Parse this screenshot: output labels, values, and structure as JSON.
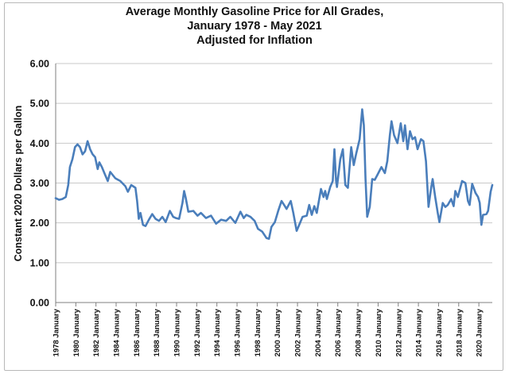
{
  "chart_data": {
    "type": "line",
    "title": "Average Monthly Gasoline Price for All Grades,",
    "subtitle": "January 1978 - May 2021",
    "subtitle2": "Adjusted for Inflation",
    "xlabel": "",
    "ylabel": "Constant 2020 Dollars per Gallon",
    "ylim": [
      0,
      6
    ],
    "y_ticks": [
      "0.00",
      "1.00",
      "2.00",
      "3.00",
      "4.00",
      "5.00",
      "6.00"
    ],
    "x_range": [
      "1978-01",
      "2021-05"
    ],
    "x_ticks": [
      "1978 January",
      "1980 January",
      "1982 January",
      "1984 January",
      "1986 January",
      "1988 January",
      "1990 January",
      "1992 January",
      "1994 January",
      "1996 January",
      "1998 January",
      "2000 January",
      "2002 January",
      "2004 January",
      "2006 January",
      "2008 January",
      "2010 January",
      "2012 January",
      "2014 January",
      "2016 January",
      "2018 January",
      "2020 January"
    ],
    "grid": "horizontal",
    "legend": "none",
    "line_color": "#4a7ebb",
    "series": [
      {
        "points": [
          [
            "1978-01",
            2.62
          ],
          [
            "1978-05",
            2.58
          ],
          [
            "1978-09",
            2.6
          ],
          [
            "1979-01",
            2.65
          ],
          [
            "1979-04",
            2.95
          ],
          [
            "1979-06",
            3.4
          ],
          [
            "1979-09",
            3.6
          ],
          [
            "1979-12",
            3.9
          ],
          [
            "1980-03",
            3.97
          ],
          [
            "1980-06",
            3.9
          ],
          [
            "1980-09",
            3.72
          ],
          [
            "1980-12",
            3.8
          ],
          [
            "1981-03",
            4.05
          ],
          [
            "1981-06",
            3.85
          ],
          [
            "1981-09",
            3.72
          ],
          [
            "1981-12",
            3.65
          ],
          [
            "1982-03",
            3.35
          ],
          [
            "1982-05",
            3.52
          ],
          [
            "1982-08",
            3.4
          ],
          [
            "1982-12",
            3.2
          ],
          [
            "1983-03",
            3.05
          ],
          [
            "1983-06",
            3.28
          ],
          [
            "1983-12",
            3.12
          ],
          [
            "1984-06",
            3.05
          ],
          [
            "1984-12",
            2.92
          ],
          [
            "1985-03",
            2.78
          ],
          [
            "1985-07",
            2.95
          ],
          [
            "1985-12",
            2.88
          ],
          [
            "1986-02",
            2.55
          ],
          [
            "1986-04",
            2.1
          ],
          [
            "1986-06",
            2.25
          ],
          [
            "1986-09",
            1.95
          ],
          [
            "1986-12",
            1.92
          ],
          [
            "1987-04",
            2.08
          ],
          [
            "1987-08",
            2.22
          ],
          [
            "1987-12",
            2.1
          ],
          [
            "1988-04",
            2.05
          ],
          [
            "1988-08",
            2.15
          ],
          [
            "1988-12",
            2.02
          ],
          [
            "1989-05",
            2.3
          ],
          [
            "1989-09",
            2.15
          ],
          [
            "1989-12",
            2.12
          ],
          [
            "1990-04",
            2.1
          ],
          [
            "1990-08",
            2.5
          ],
          [
            "1990-10",
            2.8
          ],
          [
            "1990-12",
            2.62
          ],
          [
            "1991-03",
            2.28
          ],
          [
            "1991-09",
            2.3
          ],
          [
            "1992-02",
            2.18
          ],
          [
            "1992-06",
            2.25
          ],
          [
            "1992-12",
            2.12
          ],
          [
            "1993-06",
            2.18
          ],
          [
            "1993-12",
            1.98
          ],
          [
            "1994-06",
            2.08
          ],
          [
            "1994-12",
            2.05
          ],
          [
            "1995-05",
            2.15
          ],
          [
            "1995-11",
            2.0
          ],
          [
            "1996-05",
            2.28
          ],
          [
            "1996-09",
            2.12
          ],
          [
            "1996-12",
            2.2
          ],
          [
            "1997-05",
            2.15
          ],
          [
            "1997-10",
            2.05
          ],
          [
            "1998-02",
            1.85
          ],
          [
            "1998-07",
            1.78
          ],
          [
            "1998-12",
            1.62
          ],
          [
            "1999-03",
            1.6
          ],
          [
            "1999-06",
            1.9
          ],
          [
            "1999-10",
            2.02
          ],
          [
            "2000-02",
            2.3
          ],
          [
            "2000-06",
            2.55
          ],
          [
            "2000-09",
            2.45
          ],
          [
            "2000-12",
            2.35
          ],
          [
            "2001-05",
            2.55
          ],
          [
            "2001-08",
            2.25
          ],
          [
            "2001-12",
            1.8
          ],
          [
            "2002-03",
            1.95
          ],
          [
            "2002-07",
            2.15
          ],
          [
            "2002-12",
            2.18
          ],
          [
            "2003-03",
            2.45
          ],
          [
            "2003-06",
            2.2
          ],
          [
            "2003-09",
            2.42
          ],
          [
            "2003-12",
            2.25
          ],
          [
            "2004-05",
            2.85
          ],
          [
            "2004-08",
            2.65
          ],
          [
            "2004-10",
            2.8
          ],
          [
            "2004-12",
            2.6
          ],
          [
            "2005-04",
            2.9
          ],
          [
            "2005-07",
            3.05
          ],
          [
            "2005-09",
            3.85
          ],
          [
            "2005-11",
            3.05
          ],
          [
            "2005-12",
            2.9
          ],
          [
            "2006-04",
            3.6
          ],
          [
            "2006-07",
            3.85
          ],
          [
            "2006-10",
            2.95
          ],
          [
            "2007-01",
            2.88
          ],
          [
            "2007-05",
            3.9
          ],
          [
            "2007-08",
            3.45
          ],
          [
            "2007-11",
            3.75
          ],
          [
            "2008-03",
            4.1
          ],
          [
            "2008-06",
            4.85
          ],
          [
            "2008-08",
            4.45
          ],
          [
            "2008-10",
            3.1
          ],
          [
            "2008-12",
            2.15
          ],
          [
            "2009-03",
            2.4
          ],
          [
            "2009-06",
            3.1
          ],
          [
            "2009-09",
            3.08
          ],
          [
            "2009-12",
            3.2
          ],
          [
            "2010-05",
            3.4
          ],
          [
            "2010-09",
            3.25
          ],
          [
            "2010-12",
            3.55
          ],
          [
            "2011-03",
            4.2
          ],
          [
            "2011-05",
            4.55
          ],
          [
            "2011-08",
            4.2
          ],
          [
            "2011-12",
            4.0
          ],
          [
            "2012-04",
            4.5
          ],
          [
            "2012-07",
            4.05
          ],
          [
            "2012-09",
            4.45
          ],
          [
            "2012-12",
            3.85
          ],
          [
            "2013-03",
            4.3
          ],
          [
            "2013-06",
            4.1
          ],
          [
            "2013-09",
            4.15
          ],
          [
            "2013-12",
            3.85
          ],
          [
            "2014-04",
            4.1
          ],
          [
            "2014-07",
            4.05
          ],
          [
            "2014-10",
            3.55
          ],
          [
            "2015-01",
            2.4
          ],
          [
            "2015-04",
            2.85
          ],
          [
            "2015-06",
            3.1
          ],
          [
            "2015-09",
            2.65
          ],
          [
            "2015-12",
            2.25
          ],
          [
            "2016-02",
            2.02
          ],
          [
            "2016-06",
            2.5
          ],
          [
            "2016-09",
            2.4
          ],
          [
            "2016-12",
            2.45
          ],
          [
            "2017-04",
            2.6
          ],
          [
            "2017-07",
            2.42
          ],
          [
            "2017-09",
            2.8
          ],
          [
            "2017-12",
            2.65
          ],
          [
            "2018-05",
            3.05
          ],
          [
            "2018-09",
            3.0
          ],
          [
            "2018-12",
            2.55
          ],
          [
            "2019-02",
            2.45
          ],
          [
            "2019-05",
            2.98
          ],
          [
            "2019-09",
            2.75
          ],
          [
            "2019-12",
            2.65
          ],
          [
            "2020-02",
            2.5
          ],
          [
            "2020-04",
            1.95
          ],
          [
            "2020-06",
            2.2
          ],
          [
            "2020-10",
            2.22
          ],
          [
            "2020-12",
            2.3
          ],
          [
            "2021-03",
            2.78
          ],
          [
            "2021-05",
            2.95
          ]
        ]
      }
    ]
  }
}
